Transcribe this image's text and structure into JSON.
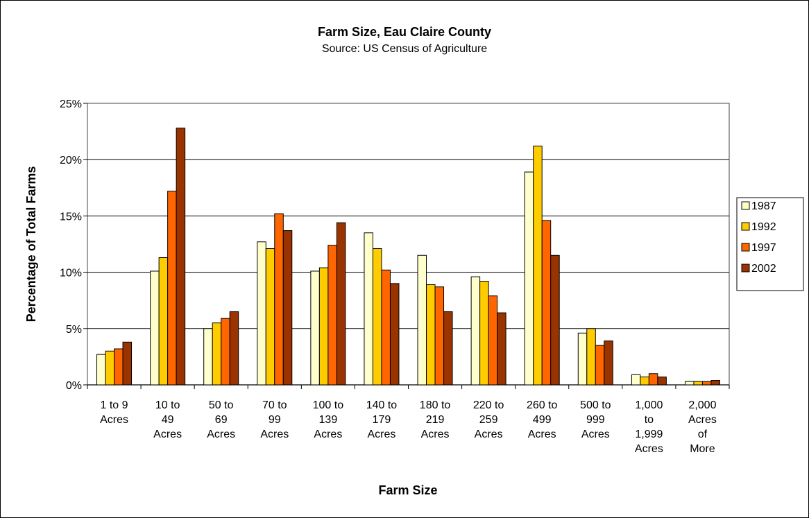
{
  "chart_data": {
    "type": "bar",
    "title": "Farm Size, Eau Claire County",
    "subtitle": "Source: US Census of Agriculture",
    "xlabel": "Farm Size",
    "ylabel": "Percentage of Total Farms",
    "ylim": [
      0,
      25
    ],
    "yticks": [
      "0%",
      "5%",
      "10%",
      "15%",
      "20%",
      "25%"
    ],
    "grid": true,
    "legend_position": "right",
    "categories": [
      [
        "1 to 9",
        "Acres"
      ],
      [
        "10 to",
        "49",
        "Acres"
      ],
      [
        "50 to",
        "69",
        "Acres"
      ],
      [
        "70 to",
        "99",
        "Acres"
      ],
      [
        "100 to",
        "139",
        "Acres"
      ],
      [
        "140 to",
        "179",
        "Acres"
      ],
      [
        "180 to",
        "219",
        "Acres"
      ],
      [
        "220 to",
        "259",
        "Acres"
      ],
      [
        "260 to",
        "499",
        "Acres"
      ],
      [
        "500 to",
        "999",
        "Acres"
      ],
      [
        "1,000",
        "to",
        "1,999",
        "Acres"
      ],
      [
        "2,000",
        "Acres",
        "of",
        "More"
      ]
    ],
    "series": [
      {
        "name": "1987",
        "color": "#FFFFCC",
        "values": [
          2.7,
          10.1,
          5.0,
          12.7,
          10.1,
          13.5,
          11.5,
          9.6,
          18.9,
          4.6,
          0.9,
          0.3
        ]
      },
      {
        "name": "1992",
        "color": "#FFCC00",
        "values": [
          3.0,
          11.3,
          5.5,
          12.1,
          10.4,
          12.1,
          8.9,
          9.2,
          21.2,
          5.0,
          0.7,
          0.3
        ]
      },
      {
        "name": "1997",
        "color": "#FF6600",
        "values": [
          3.2,
          17.2,
          5.9,
          15.2,
          12.4,
          10.2,
          8.7,
          7.9,
          14.6,
          3.5,
          1.0,
          0.3
        ]
      },
      {
        "name": "2002",
        "color": "#993300",
        "values": [
          3.8,
          22.8,
          6.5,
          13.7,
          14.4,
          9.0,
          6.5,
          6.4,
          11.5,
          3.9,
          0.7,
          0.4
        ]
      }
    ]
  }
}
